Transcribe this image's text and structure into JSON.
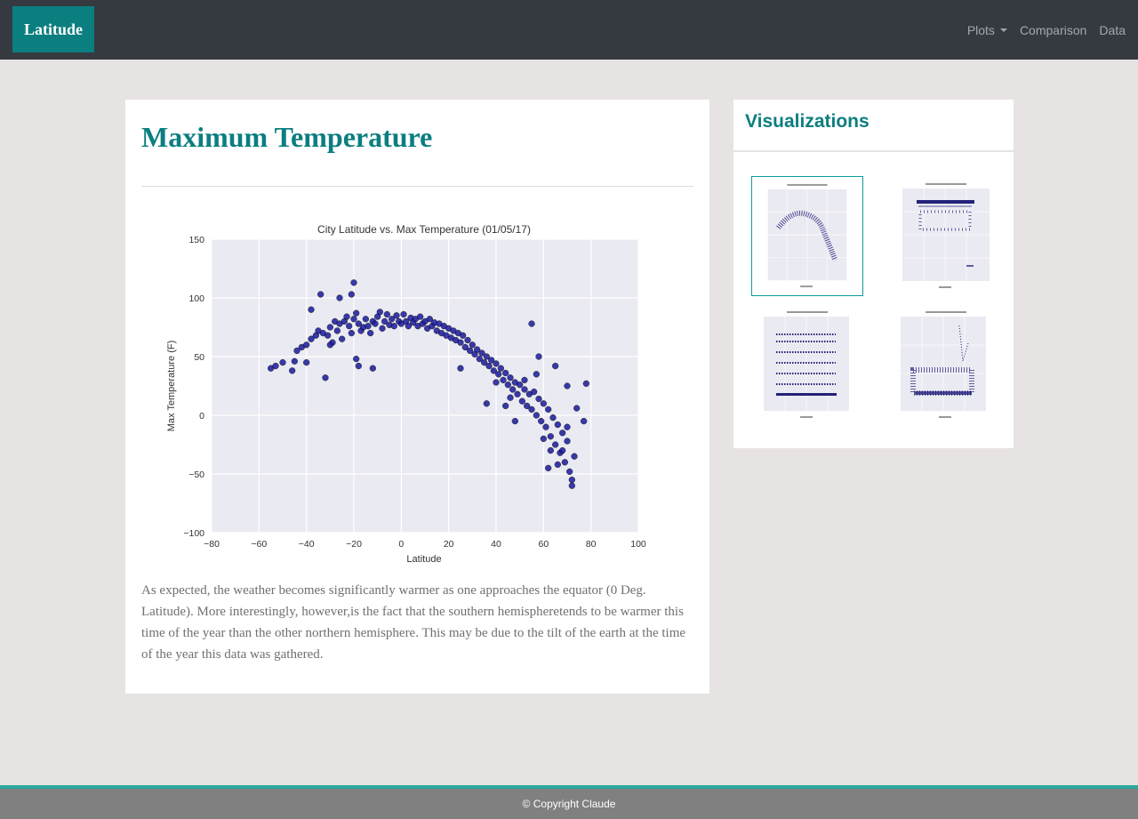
{
  "navbar": {
    "brand": "Latitude",
    "links": [
      {
        "label": "Plots",
        "dropdown": true
      },
      {
        "label": "Comparison"
      },
      {
        "label": "Data"
      }
    ]
  },
  "main": {
    "title": "Maximum Temperature",
    "description": "As expected, the weather becomes significantly warmer as one approaches the equator (0 Deg. Latitude). More interestingly, however,is the fact that the southern hemispheretends to be warmer this time of the year than the other northern hemisphere. This may be due to the tilt of the earth at the time of the year this data was gathered."
  },
  "sidebar": {
    "title": "Visualizations"
  },
  "footer": {
    "text": "© Copyright Claude"
  },
  "colors": {
    "accent": "#0b7e80",
    "point": "#1a1a9e",
    "plot_bg": "#eaeaf2"
  },
  "chart_data": {
    "type": "scatter",
    "title": "City Latitude vs. Max Temperature (01/05/17)",
    "xlabel": "Latitude",
    "ylabel": "Max Temperature (F)",
    "xlim": [
      -80,
      100
    ],
    "ylim": [
      -100,
      150
    ],
    "xticks": [
      -80,
      -60,
      -40,
      -20,
      0,
      20,
      40,
      60,
      80,
      100
    ],
    "yticks": [
      -100,
      -50,
      0,
      50,
      100,
      150
    ],
    "tick_labels_x": [
      "−80",
      "−60",
      "−40",
      "−20",
      "0",
      "20",
      "40",
      "60",
      "80",
      "100"
    ],
    "tick_labels_y": [
      "−100",
      "−50",
      "0",
      "50",
      "100",
      "150"
    ],
    "grid": true,
    "points": [
      [
        -55,
        40
      ],
      [
        -53,
        42
      ],
      [
        -50,
        45
      ],
      [
        -45,
        46
      ],
      [
        -44,
        55
      ],
      [
        -42,
        58
      ],
      [
        -40,
        60
      ],
      [
        -38,
        65
      ],
      [
        -36,
        68
      ],
      [
        -35,
        72
      ],
      [
        -33,
        70
      ],
      [
        -32,
        32
      ],
      [
        -31,
        68
      ],
      [
        -30,
        75
      ],
      [
        -29,
        62
      ],
      [
        -28,
        80
      ],
      [
        -27,
        72
      ],
      [
        -26,
        78
      ],
      [
        -25,
        65
      ],
      [
        -24,
        80
      ],
      [
        -23,
        84
      ],
      [
        -22,
        76
      ],
      [
        -21,
        70
      ],
      [
        -20,
        113
      ],
      [
        -20,
        82
      ],
      [
        -19,
        87
      ],
      [
        -18,
        78
      ],
      [
        -17,
        72
      ],
      [
        -16,
        75
      ],
      [
        -15,
        82
      ],
      [
        -14,
        76
      ],
      [
        -13,
        70
      ],
      [
        -12,
        80
      ],
      [
        -11,
        78
      ],
      [
        -10,
        84
      ],
      [
        -9,
        88
      ],
      [
        -8,
        74
      ],
      [
        -7,
        80
      ],
      [
        -6,
        86
      ],
      [
        -5,
        77
      ],
      [
        -4,
        82
      ],
      [
        -3,
        76
      ],
      [
        -2,
        85
      ],
      [
        -1,
        80
      ],
      [
        0,
        78
      ],
      [
        1,
        86
      ],
      [
        2,
        80
      ],
      [
        3,
        76
      ],
      [
        4,
        83
      ],
      [
        5,
        79
      ],
      [
        6,
        82
      ],
      [
        7,
        76
      ],
      [
        8,
        84
      ],
      [
        9,
        78
      ],
      [
        10,
        80
      ],
      [
        11,
        74
      ],
      [
        12,
        82
      ],
      [
        13,
        76
      ],
      [
        14,
        79
      ],
      [
        15,
        72
      ],
      [
        16,
        78
      ],
      [
        17,
        70
      ],
      [
        18,
        76
      ],
      [
        19,
        68
      ],
      [
        20,
        74
      ],
      [
        21,
        66
      ],
      [
        22,
        72
      ],
      [
        23,
        64
      ],
      [
        24,
        70
      ],
      [
        25,
        62
      ],
      [
        26,
        68
      ],
      [
        27,
        58
      ],
      [
        28,
        64
      ],
      [
        29,
        55
      ],
      [
        30,
        60
      ],
      [
        31,
        52
      ],
      [
        32,
        56
      ],
      [
        33,
        48
      ],
      [
        34,
        53
      ],
      [
        35,
        45
      ],
      [
        36,
        50
      ],
      [
        37,
        42
      ],
      [
        38,
        47
      ],
      [
        39,
        38
      ],
      [
        40,
        44
      ],
      [
        41,
        35
      ],
      [
        42,
        40
      ],
      [
        43,
        30
      ],
      [
        44,
        36
      ],
      [
        45,
        26
      ],
      [
        46,
        32
      ],
      [
        47,
        22
      ],
      [
        48,
        28
      ],
      [
        49,
        18
      ],
      [
        50,
        26
      ],
      [
        51,
        12
      ],
      [
        52,
        22
      ],
      [
        53,
        8
      ],
      [
        54,
        18
      ],
      [
        55,
        5
      ],
      [
        56,
        20
      ],
      [
        57,
        0
      ],
      [
        58,
        14
      ],
      [
        59,
        -5
      ],
      [
        60,
        10
      ],
      [
        61,
        -10
      ],
      [
        62,
        5
      ],
      [
        63,
        -18
      ],
      [
        64,
        -2
      ],
      [
        65,
        -25
      ],
      [
        66,
        -8
      ],
      [
        67,
        -32
      ],
      [
        68,
        -15
      ],
      [
        69,
        -40
      ],
      [
        70,
        -22
      ],
      [
        71,
        -48
      ],
      [
        72,
        -55
      ],
      [
        72,
        -60
      ],
      [
        73,
        -35
      ],
      [
        78,
        27
      ],
      [
        -38,
        90
      ],
      [
        -34,
        103
      ],
      [
        -26,
        100
      ],
      [
        -21,
        103
      ],
      [
        -19,
        48
      ],
      [
        -18,
        42
      ],
      [
        -12,
        40
      ],
      [
        -40,
        45
      ],
      [
        -46,
        38
      ],
      [
        -30,
        60
      ],
      [
        25,
        40
      ],
      [
        36,
        10
      ],
      [
        44,
        8
      ],
      [
        48,
        -5
      ],
      [
        52,
        30
      ],
      [
        55,
        78
      ],
      [
        58,
        50
      ],
      [
        60,
        -20
      ],
      [
        62,
        -45
      ],
      [
        65,
        42
      ],
      [
        66,
        -42
      ],
      [
        68,
        -30
      ],
      [
        70,
        -10
      ],
      [
        74,
        6
      ],
      [
        77,
        -5
      ],
      [
        70,
        25
      ],
      [
        63,
        -30
      ],
      [
        57,
        35
      ],
      [
        46,
        15
      ],
      [
        40,
        28
      ]
    ]
  }
}
